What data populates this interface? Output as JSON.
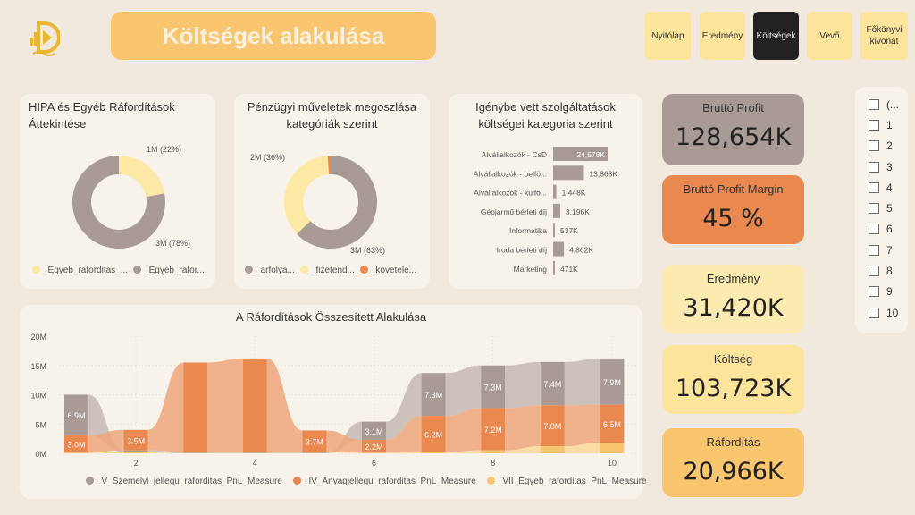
{
  "header": {
    "title": "Költségek alakulása",
    "logo": "D"
  },
  "nav": [
    {
      "label": "Nyitólap"
    },
    {
      "label": "Eredmény"
    },
    {
      "label": "Költségek",
      "active": true
    },
    {
      "label": "Vevő"
    },
    {
      "label": "Főkönyvi kivonat"
    }
  ],
  "colors": {
    "grey": "#A89A95",
    "orange": "#E9884F",
    "light_orange": "#EEA67C",
    "yellow": "#FCE9A6",
    "gold": "#F9C56E"
  },
  "donut1": {
    "title": "HIPA és Egyéb Ráfordítások Áttekintése",
    "slices": [
      {
        "name": "_Egyeb_raforditas_...",
        "label": "1M (22%)",
        "pct": 22,
        "color": "#FCE9A6"
      },
      {
        "name": "_Egyeb_rafor...",
        "label": "3M (78%)",
        "pct": 78,
        "color": "#A89A95"
      }
    ]
  },
  "donut2": {
    "title": "Pénzügyi műveletek megoszlása kategóriák szerint",
    "slices": [
      {
        "name": "_arfolya...",
        "label": "3M (63%)",
        "pct": 63,
        "color": "#A89A95"
      },
      {
        "name": "_fizetend...",
        "label": "2M (36%)",
        "pct": 36,
        "color": "#FCE9A6"
      },
      {
        "name": "_kovetele...",
        "label": "",
        "pct": 1,
        "color": "#E9884F"
      }
    ]
  },
  "bars": {
    "title": "Igénybe vett szolgáltatások költségei kategoria szerint",
    "items": [
      {
        "label": "Alvállalkozók - CsD",
        "value": 24578,
        "text": "24,578K"
      },
      {
        "label": "Alvállalkozók - belfö...",
        "value": 13863,
        "text": "13,863K"
      },
      {
        "label": "Alvállalkozók - külfö...",
        "value": 1448,
        "text": "1,448K"
      },
      {
        "label": "Gépjármű bérleti díj",
        "value": 3196,
        "text": "3,196K"
      },
      {
        "label": "Informatika",
        "value": 537,
        "text": "537K"
      },
      {
        "label": "Iroda bérleti díj",
        "value": 4862,
        "text": "4,862K"
      },
      {
        "label": "Marketing",
        "value": 471,
        "text": "471K"
      }
    ]
  },
  "chart_data": {
    "type": "ribbon",
    "title": "A Ráfordítások Összesített Alakulása",
    "x": [
      1,
      2,
      3,
      4,
      5,
      6,
      7,
      8,
      9,
      10
    ],
    "xticks": [
      "2",
      "4",
      "6",
      "8",
      "10"
    ],
    "yticks": [
      "0M",
      "5M",
      "10M",
      "15M",
      "20M"
    ],
    "ylim": [
      0,
      20
    ],
    "series": [
      {
        "name": "_V_Szemelyi_jellegu_raforditas_PnL_Measure",
        "color": "#A89A95",
        "values": [
          6.9,
          0.3,
          0.1,
          0.1,
          0.1,
          3.1,
          7.3,
          7.3,
          7.4,
          7.9
        ],
        "labels": [
          "6.9M",
          "",
          "",
          "",
          "",
          "3.1M",
          "7.3M",
          "7.3M",
          "7.4M",
          "7.9M"
        ]
      },
      {
        "name": "_IV_Anyagjellegu_raforditas_PnL_Measure",
        "color": "#E9884F",
        "values": [
          3.0,
          3.5,
          15.3,
          16.0,
          3.7,
          2.2,
          6.2,
          7.2,
          7.0,
          6.5
        ],
        "labels": [
          "3.0M",
          "3.5M",
          "",
          "",
          "3.7M",
          "2.2M",
          "6.2M",
          "7.2M",
          "7.0M",
          "6.5M"
        ]
      },
      {
        "name": "_VII_Egyeb_raforditas_PnL_Measure",
        "color": "#F9C56E",
        "values": [
          0.1,
          0.2,
          0.1,
          0.1,
          0.1,
          0.1,
          0.2,
          0.5,
          1.2,
          1.8
        ],
        "labels": [
          "",
          "",
          "",
          "",
          "",
          "",
          "",
          "",
          "",
          ""
        ]
      }
    ]
  },
  "kpis": [
    {
      "label": "Bruttó Profit",
      "value": "128,654K",
      "color": "#A89A95"
    },
    {
      "label": "Bruttó Profit Margin",
      "value": "45 %",
      "color": "#E9884F"
    },
    {
      "label": "Eredmény",
      "value": "31,420K",
      "color": "#FCEBB0"
    },
    {
      "label": "Költség",
      "value": "103,723K",
      "color": "#FCE49A"
    },
    {
      "label": "Ráfordítás",
      "value": "20,966K",
      "color": "#F9C56E"
    }
  ],
  "slicer": {
    "items": [
      "(...",
      "1",
      "2",
      "3",
      "4",
      "5",
      "6",
      "7",
      "8",
      "9",
      "10"
    ]
  }
}
